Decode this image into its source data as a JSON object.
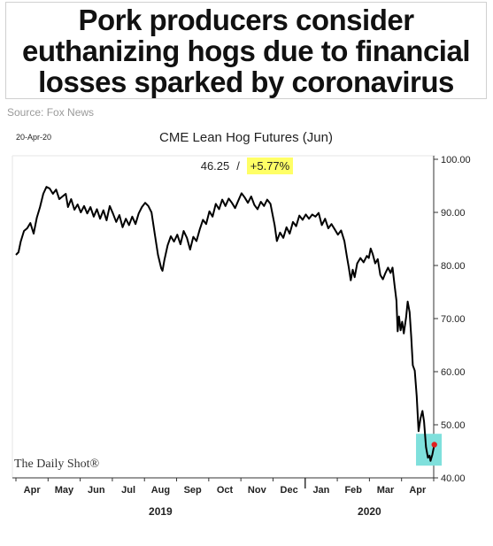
{
  "headline": "Pork producers consider euthanizing hogs due to financial losses sparked by coronavirus",
  "source": "Source: Fox News",
  "brand": "The Daily Shot®",
  "chart_data": {
    "type": "line",
    "title": "CME Lean Hog Futures (Jun)",
    "date_label": "20-Apr-20",
    "last_value": "46.25",
    "separator": "/",
    "change": "+5.77%",
    "xlabel": "",
    "ylabel": "",
    "ylim": [
      40,
      100
    ],
    "y_ticks": [
      "100.00",
      "90.00",
      "80.00",
      "70.00",
      "60.00",
      "50.00",
      "40.00"
    ],
    "y_axis_position": "right",
    "months": [
      "Apr",
      "May",
      "Jun",
      "Jul",
      "Aug",
      "Sep",
      "Oct",
      "Nov",
      "Dec",
      "Jan",
      "Feb",
      "Mar",
      "Apr"
    ],
    "years": [
      "2019",
      "2020"
    ],
    "series": [
      {
        "values": [
          [
            0.0,
            82.0
          ],
          [
            0.08,
            82.5
          ],
          [
            0.15,
            84.5
          ],
          [
            0.25,
            86.5
          ],
          [
            0.35,
            87.0
          ],
          [
            0.45,
            88.0
          ],
          [
            0.55,
            86.0
          ],
          [
            0.65,
            89.0
          ],
          [
            0.75,
            91.0
          ],
          [
            0.85,
            93.5
          ],
          [
            0.95,
            94.8
          ],
          [
            1.05,
            94.5
          ],
          [
            1.15,
            93.5
          ],
          [
            1.25,
            94.3
          ],
          [
            1.35,
            92.5
          ],
          [
            1.45,
            93.0
          ],
          [
            1.55,
            93.5
          ],
          [
            1.62,
            91.0
          ],
          [
            1.72,
            92.5
          ],
          [
            1.82,
            90.5
          ],
          [
            1.92,
            91.5
          ],
          [
            2.02,
            90.0
          ],
          [
            2.12,
            91.2
          ],
          [
            2.22,
            89.8
          ],
          [
            2.32,
            91.0
          ],
          [
            2.42,
            89.2
          ],
          [
            2.52,
            90.6
          ],
          [
            2.62,
            88.8
          ],
          [
            2.72,
            90.4
          ],
          [
            2.82,
            88.5
          ],
          [
            2.92,
            91.2
          ],
          [
            3.02,
            89.8
          ],
          [
            3.12,
            88.2
          ],
          [
            3.22,
            89.5
          ],
          [
            3.32,
            87.2
          ],
          [
            3.42,
            88.8
          ],
          [
            3.52,
            87.6
          ],
          [
            3.62,
            89.2
          ],
          [
            3.72,
            87.8
          ],
          [
            3.82,
            89.8
          ],
          [
            3.92,
            91.0
          ],
          [
            4.02,
            91.8
          ],
          [
            4.12,
            91.2
          ],
          [
            4.22,
            90.0
          ],
          [
            4.32,
            86.0
          ],
          [
            4.42,
            82.0
          ],
          [
            4.52,
            79.5
          ],
          [
            4.56,
            79.0
          ],
          [
            4.62,
            81.0
          ],
          [
            4.72,
            83.8
          ],
          [
            4.82,
            85.5
          ],
          [
            4.92,
            84.5
          ],
          [
            5.02,
            85.8
          ],
          [
            5.12,
            84.0
          ],
          [
            5.22,
            86.5
          ],
          [
            5.32,
            85.2
          ],
          [
            5.42,
            83.0
          ],
          [
            5.52,
            85.4
          ],
          [
            5.62,
            84.6
          ],
          [
            5.72,
            86.8
          ],
          [
            5.82,
            88.6
          ],
          [
            5.92,
            87.8
          ],
          [
            6.02,
            90.2
          ],
          [
            6.12,
            89.2
          ],
          [
            6.22,
            91.6
          ],
          [
            6.32,
            90.6
          ],
          [
            6.42,
            92.4
          ],
          [
            6.52,
            91.2
          ],
          [
            6.62,
            92.6
          ],
          [
            6.72,
            91.8
          ],
          [
            6.82,
            90.8
          ],
          [
            6.92,
            92.2
          ],
          [
            7.02,
            93.6
          ],
          [
            7.12,
            92.8
          ],
          [
            7.22,
            91.8
          ],
          [
            7.32,
            93.0
          ],
          [
            7.42,
            91.4
          ],
          [
            7.52,
            90.6
          ],
          [
            7.62,
            92.0
          ],
          [
            7.72,
            91.2
          ],
          [
            7.82,
            92.4
          ],
          [
            7.92,
            91.6
          ],
          [
            7.98,
            89.8
          ],
          [
            8.05,
            87.6
          ],
          [
            8.12,
            84.6
          ],
          [
            8.22,
            86.2
          ],
          [
            8.32,
            85.2
          ],
          [
            8.42,
            87.2
          ],
          [
            8.52,
            86.0
          ],
          [
            8.62,
            88.2
          ],
          [
            8.72,
            87.4
          ],
          [
            8.82,
            89.4
          ],
          [
            8.92,
            88.6
          ],
          [
            9.02,
            89.6
          ],
          [
            9.12,
            88.8
          ],
          [
            9.22,
            89.6
          ],
          [
            9.32,
            89.2
          ],
          [
            9.42,
            89.9
          ],
          [
            9.52,
            87.6
          ],
          [
            9.62,
            88.8
          ],
          [
            9.72,
            87.0
          ],
          [
            9.82,
            87.8
          ],
          [
            9.92,
            86.8
          ],
          [
            10.02,
            85.8
          ],
          [
            10.12,
            86.6
          ],
          [
            10.22,
            84.6
          ],
          [
            10.3,
            81.6
          ],
          [
            10.36,
            79.6
          ],
          [
            10.42,
            77.2
          ],
          [
            10.48,
            79.2
          ],
          [
            10.54,
            77.8
          ],
          [
            10.62,
            80.4
          ],
          [
            10.72,
            81.4
          ],
          [
            10.82,
            80.6
          ],
          [
            10.92,
            81.8
          ],
          [
            10.98,
            81.4
          ],
          [
            11.04,
            83.2
          ],
          [
            11.1,
            82.2
          ],
          [
            11.18,
            80.4
          ],
          [
            11.26,
            81.2
          ],
          [
            11.34,
            78.2
          ],
          [
            11.42,
            77.4
          ],
          [
            11.5,
            78.6
          ],
          [
            11.58,
            79.6
          ],
          [
            11.66,
            78.6
          ],
          [
            11.72,
            79.6
          ],
          [
            11.78,
            76.4
          ],
          [
            11.84,
            73.4
          ],
          [
            11.88,
            67.6
          ],
          [
            11.92,
            70.4
          ],
          [
            11.97,
            67.8
          ],
          [
            12.02,
            69.4
          ],
          [
            12.07,
            67.2
          ],
          [
            12.14,
            70.2
          ],
          [
            12.19,
            73.2
          ],
          [
            12.25,
            71.2
          ],
          [
            12.3,
            66.6
          ],
          [
            12.35,
            61.2
          ],
          [
            12.41,
            60.2
          ],
          [
            12.47,
            55.4
          ],
          [
            12.53,
            48.8
          ],
          [
            12.59,
            51.2
          ],
          [
            12.65,
            52.6
          ],
          [
            12.7,
            50.6
          ],
          [
            12.76,
            45.8
          ],
          [
            12.82,
            43.8
          ],
          [
            12.87,
            44.2
          ],
          [
            12.9,
            43.2
          ],
          [
            12.96,
            44.4
          ],
          [
            13.02,
            46.25
          ]
        ]
      }
    ],
    "highlight_color": "#7fe0dc",
    "marker_color": "#e02020",
    "change_bg_color": "#ffff66",
    "line_color": "#000000"
  }
}
